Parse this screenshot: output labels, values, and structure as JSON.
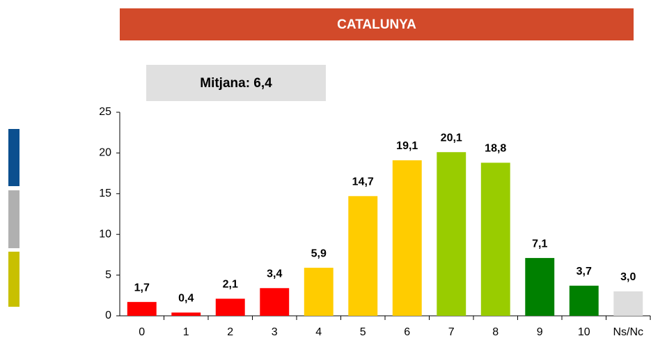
{
  "chart_data": {
    "type": "bar",
    "title": "CATALUNYA",
    "annotation": "Mitjana: 6,4",
    "categories": [
      "0",
      "1",
      "2",
      "3",
      "4",
      "5",
      "6",
      "7",
      "8",
      "9",
      "10",
      "Ns/Nc"
    ],
    "values": [
      1.7,
      0.4,
      2.1,
      3.4,
      5.9,
      14.7,
      19.1,
      20.1,
      18.8,
      7.1,
      3.7,
      3.0
    ],
    "value_labels": [
      "1,7",
      "0,4",
      "2,1",
      "3,4",
      "5,9",
      "14,7",
      "19,1",
      "20,1",
      "18,8",
      "7,1",
      "3,7",
      "3,0"
    ],
    "colors": [
      "#ff0000",
      "#ff0000",
      "#ff0000",
      "#ff0000",
      "#ffcc00",
      "#ffcc00",
      "#ffcc00",
      "#99cc00",
      "#99cc00",
      "#008000",
      "#008000",
      "#dddddd"
    ],
    "ylim": [
      0,
      25
    ],
    "yticks": [
      0,
      5,
      10,
      15,
      20,
      25
    ],
    "grid": false
  }
}
